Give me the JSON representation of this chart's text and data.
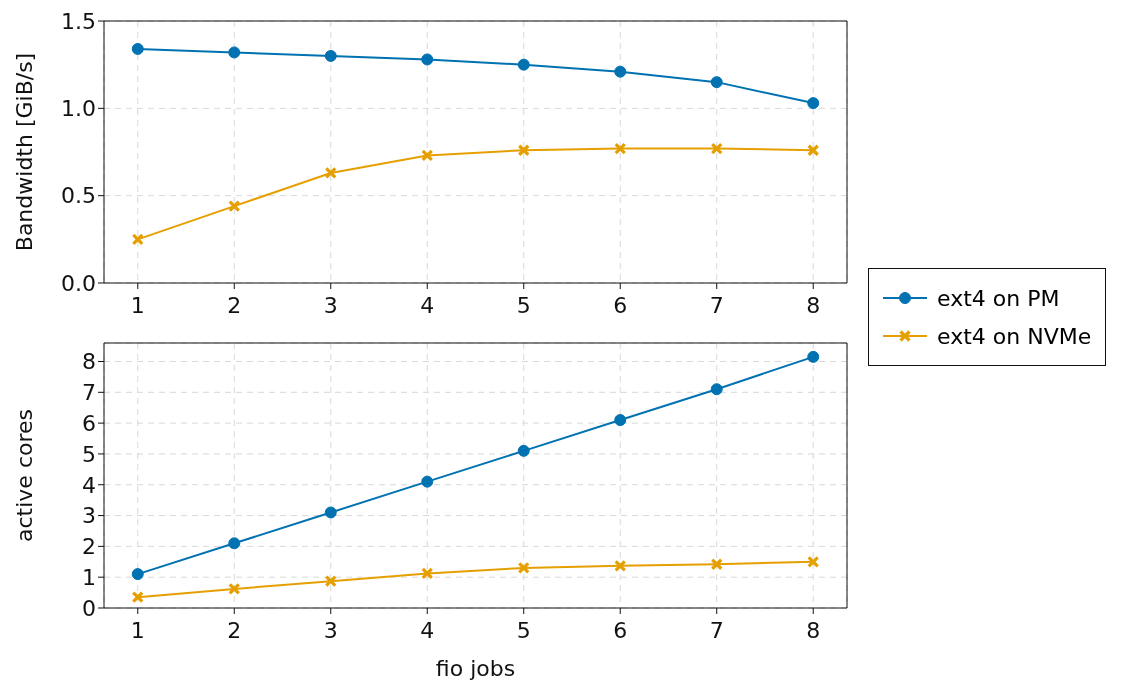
{
  "chart_data": [
    {
      "type": "line",
      "ylabel": "Bandwidth [GiB/s]",
      "x": [
        1,
        2,
        3,
        4,
        5,
        6,
        7,
        8
      ],
      "xlim": [
        0.65,
        8.35
      ],
      "xticks": [
        1,
        2,
        3,
        4,
        5,
        6,
        7,
        8
      ],
      "ylim": [
        0,
        1.5
      ],
      "yticks": [
        {
          "value": 0,
          "label": "0.0"
        },
        {
          "value": 0.5,
          "label": "0.5"
        },
        {
          "value": 1,
          "label": "1.0"
        },
        {
          "value": 1.5,
          "label": "1.5"
        }
      ],
      "grid": true,
      "legend": "right",
      "series": [
        {
          "name": "ext4 on PM",
          "color": "#0072b2",
          "marker": "circle",
          "values": [
            1.34,
            1.32,
            1.3,
            1.28,
            1.25,
            1.21,
            1.15,
            1.03
          ]
        },
        {
          "name": "ext4 on NVMe",
          "color": "#e69f00",
          "marker": "cross",
          "values": [
            0.25,
            0.44,
            0.63,
            0.73,
            0.76,
            0.77,
            0.77,
            0.76
          ]
        }
      ]
    },
    {
      "type": "line",
      "xlabel": "fio jobs",
      "ylabel": "active cores",
      "x": [
        1,
        2,
        3,
        4,
        5,
        6,
        7,
        8
      ],
      "xlim": [
        0.65,
        8.35
      ],
      "xticks": [
        1,
        2,
        3,
        4,
        5,
        6,
        7,
        8
      ],
      "ylim": [
        0,
        8.6
      ],
      "yticks": [
        0,
        1,
        2,
        3,
        4,
        5,
        6,
        7,
        8
      ],
      "grid": true,
      "series": [
        {
          "color": "#0072b2",
          "marker": "circle",
          "values": [
            1.1,
            2.1,
            3.1,
            4.1,
            5.1,
            6.1,
            7.1,
            8.15
          ]
        },
        {
          "color": "#e69f00",
          "marker": "cross",
          "values": [
            0.35,
            0.62,
            0.87,
            1.12,
            1.3,
            1.37,
            1.42,
            1.5
          ]
        }
      ]
    }
  ]
}
